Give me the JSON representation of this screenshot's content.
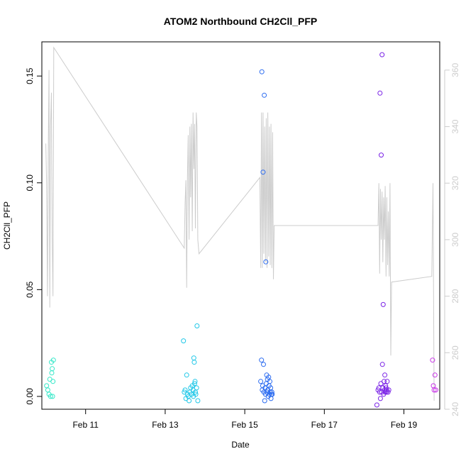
{
  "chart_data": {
    "type": "scatter",
    "title": "ATOM2 Northbound CH2Cll_PFP",
    "xlabel": "Date",
    "ylabel": "CH2Cll_PFP",
    "x_unit": "day of February",
    "xlim": [
      9.9,
      19.9
    ],
    "x_ticks": [
      {
        "value": 11,
        "label": "Feb 11"
      },
      {
        "value": 13,
        "label": "Feb 13"
      },
      {
        "value": 15,
        "label": "Feb 15"
      },
      {
        "value": 17,
        "label": "Feb 17"
      },
      {
        "value": 19,
        "label": "Feb 19"
      }
    ],
    "ylim": [
      -0.006,
      0.166
    ],
    "y_ticks": [
      0.0,
      0.05,
      0.1,
      0.15
    ],
    "y_tick_labels": [
      "0.00",
      "0.05",
      "0.10",
      "0.15"
    ],
    "y2lim": [
      240,
      370
    ],
    "y2_ticks": [
      240,
      260,
      280,
      300,
      320,
      340,
      360
    ],
    "y2_color": "#cccccc",
    "grid": false,
    "legend": "none",
    "marker": "open-circle",
    "points": [
      {
        "x": 10.02,
        "y": 0.005,
        "color": "#33e8c8"
      },
      {
        "x": 10.05,
        "y": 0.003,
        "color": "#33e8c8"
      },
      {
        "x": 10.08,
        "y": 0.001,
        "color": "#33e8c8"
      },
      {
        "x": 10.1,
        "y": 0.008,
        "color": "#33e8c8"
      },
      {
        "x": 10.12,
        "y": 0.0,
        "color": "#33e8c8"
      },
      {
        "x": 10.14,
        "y": 0.016,
        "color": "#33e8c8"
      },
      {
        "x": 10.15,
        "y": 0.011,
        "color": "#33e8c8"
      },
      {
        "x": 10.16,
        "y": 0.013,
        "color": "#33e8c8"
      },
      {
        "x": 10.17,
        "y": 0.0,
        "color": "#33e8c8"
      },
      {
        "x": 10.18,
        "y": 0.007,
        "color": "#33e8c8"
      },
      {
        "x": 10.19,
        "y": 0.017,
        "color": "#33e8c8"
      },
      {
        "x": 13.46,
        "y": 0.026,
        "color": "#22c8e8"
      },
      {
        "x": 13.48,
        "y": 0.002,
        "color": "#22c8e8"
      },
      {
        "x": 13.5,
        "y": 0.003,
        "color": "#22c8e8"
      },
      {
        "x": 13.52,
        "y": -0.001,
        "color": "#22c8e8"
      },
      {
        "x": 13.54,
        "y": 0.01,
        "color": "#22c8e8"
      },
      {
        "x": 13.56,
        "y": 0.001,
        "color": "#22c8e8"
      },
      {
        "x": 13.58,
        "y": 0.0,
        "color": "#22c8e8"
      },
      {
        "x": 13.6,
        "y": -0.002,
        "color": "#22c8e8"
      },
      {
        "x": 13.62,
        "y": 0.002,
        "color": "#22c8e8"
      },
      {
        "x": 13.64,
        "y": 0.004,
        "color": "#22c8e8"
      },
      {
        "x": 13.66,
        "y": 0.001,
        "color": "#22c8e8"
      },
      {
        "x": 13.68,
        "y": 0.005,
        "color": "#22c8e8"
      },
      {
        "x": 13.7,
        "y": 0.003,
        "color": "#22c8e8"
      },
      {
        "x": 13.71,
        "y": 0.0,
        "color": "#22c8e8"
      },
      {
        "x": 13.72,
        "y": 0.018,
        "color": "#22c8e8"
      },
      {
        "x": 13.73,
        "y": 0.016,
        "color": "#22c8e8"
      },
      {
        "x": 13.74,
        "y": 0.006,
        "color": "#22c8e8"
      },
      {
        "x": 13.75,
        "y": 0.007,
        "color": "#22c8e8"
      },
      {
        "x": 13.76,
        "y": 0.002,
        "color": "#22c8e8"
      },
      {
        "x": 13.77,
        "y": 0.001,
        "color": "#22c8e8"
      },
      {
        "x": 13.79,
        "y": 0.004,
        "color": "#22c8e8"
      },
      {
        "x": 13.8,
        "y": 0.033,
        "color": "#22c8e8"
      },
      {
        "x": 13.82,
        "y": -0.002,
        "color": "#22c8e8"
      },
      {
        "x": 15.4,
        "y": 0.007,
        "color": "#2b6bf0"
      },
      {
        "x": 15.42,
        "y": 0.017,
        "color": "#2b6bf0"
      },
      {
        "x": 15.43,
        "y": 0.152,
        "color": "#2b6bf0"
      },
      {
        "x": 15.44,
        "y": 0.003,
        "color": "#2b6bf0"
      },
      {
        "x": 15.45,
        "y": 0.005,
        "color": "#2b6bf0"
      },
      {
        "x": 15.46,
        "y": 0.105,
        "color": "#2b6bf0"
      },
      {
        "x": 15.47,
        "y": 0.015,
        "color": "#2b6bf0"
      },
      {
        "x": 15.48,
        "y": 0.002,
        "color": "#2b6bf0"
      },
      {
        "x": 15.49,
        "y": 0.141,
        "color": "#2b6bf0"
      },
      {
        "x": 15.5,
        "y": -0.002,
        "color": "#2b6bf0"
      },
      {
        "x": 15.51,
        "y": 0.004,
        "color": "#2b6bf0"
      },
      {
        "x": 15.52,
        "y": 0.001,
        "color": "#2b6bf0"
      },
      {
        "x": 15.53,
        "y": 0.063,
        "color": "#2b6bf0"
      },
      {
        "x": 15.54,
        "y": 0.006,
        "color": "#2b6bf0"
      },
      {
        "x": 15.55,
        "y": 0.01,
        "color": "#2b6bf0"
      },
      {
        "x": 15.56,
        "y": 0.002,
        "color": "#2b6bf0"
      },
      {
        "x": 15.57,
        "y": 0.008,
        "color": "#2b6bf0"
      },
      {
        "x": 15.58,
        "y": 0.003,
        "color": "#2b6bf0"
      },
      {
        "x": 15.59,
        "y": 0.0,
        "color": "#2b6bf0"
      },
      {
        "x": 15.6,
        "y": 0.009,
        "color": "#2b6bf0"
      },
      {
        "x": 15.61,
        "y": 0.005,
        "color": "#2b6bf0"
      },
      {
        "x": 15.62,
        "y": 0.001,
        "color": "#2b6bf0"
      },
      {
        "x": 15.63,
        "y": 0.007,
        "color": "#2b6bf0"
      },
      {
        "x": 15.64,
        "y": 0.002,
        "color": "#2b6bf0"
      },
      {
        "x": 15.65,
        "y": 0.004,
        "color": "#2b6bf0"
      },
      {
        "x": 15.66,
        "y": -0.001,
        "color": "#2b6bf0"
      },
      {
        "x": 15.67,
        "y": 0.001,
        "color": "#2b6bf0"
      },
      {
        "x": 15.68,
        "y": 0.002,
        "color": "#2b6bf0"
      },
      {
        "x": 15.69,
        "y": 0.001,
        "color": "#2b6bf0"
      },
      {
        "x": 18.32,
        "y": -0.004,
        "color": "#7a22e6"
      },
      {
        "x": 18.35,
        "y": 0.003,
        "color": "#7a22e6"
      },
      {
        "x": 18.37,
        "y": 0.004,
        "color": "#7a22e6"
      },
      {
        "x": 18.39,
        "y": 0.002,
        "color": "#7a22e6"
      },
      {
        "x": 18.4,
        "y": 0.142,
        "color": "#7a22e6"
      },
      {
        "x": 18.41,
        "y": -0.001,
        "color": "#7a22e6"
      },
      {
        "x": 18.42,
        "y": 0.006,
        "color": "#7a22e6"
      },
      {
        "x": 18.43,
        "y": 0.113,
        "color": "#7a22e6"
      },
      {
        "x": 18.44,
        "y": 0.002,
        "color": "#7a22e6"
      },
      {
        "x": 18.45,
        "y": 0.16,
        "color": "#7a22e6"
      },
      {
        "x": 18.46,
        "y": 0.015,
        "color": "#7a22e6"
      },
      {
        "x": 18.47,
        "y": 0.004,
        "color": "#7a22e6"
      },
      {
        "x": 18.48,
        "y": 0.043,
        "color": "#7a22e6"
      },
      {
        "x": 18.49,
        "y": 0.001,
        "color": "#7a22e6"
      },
      {
        "x": 18.5,
        "y": 0.007,
        "color": "#7a22e6"
      },
      {
        "x": 18.51,
        "y": 0.003,
        "color": "#7a22e6"
      },
      {
        "x": 18.52,
        "y": 0.01,
        "color": "#7a22e6"
      },
      {
        "x": 18.53,
        "y": 0.002,
        "color": "#7a22e6"
      },
      {
        "x": 18.54,
        "y": 0.005,
        "color": "#7a22e6"
      },
      {
        "x": 18.55,
        "y": 0.004,
        "color": "#7a22e6"
      },
      {
        "x": 18.56,
        "y": 0.002,
        "color": "#7a22e6"
      },
      {
        "x": 18.57,
        "y": 0.003,
        "color": "#7a22e6"
      },
      {
        "x": 18.58,
        "y": 0.007,
        "color": "#7a22e6"
      },
      {
        "x": 18.6,
        "y": 0.002,
        "color": "#7a22e6"
      },
      {
        "x": 18.62,
        "y": 0.003,
        "color": "#7a22e6"
      },
      {
        "x": 19.72,
        "y": 0.017,
        "color": "#c733e6"
      },
      {
        "x": 19.74,
        "y": 0.005,
        "color": "#c733e6"
      },
      {
        "x": 19.76,
        "y": 0.003,
        "color": "#c733e6"
      },
      {
        "x": 19.78,
        "y": 0.01,
        "color": "#c733e6"
      },
      {
        "x": 19.8,
        "y": 0.003,
        "color": "#c733e6"
      }
    ],
    "secondary_line": {
      "color": "#cccccc",
      "axis": "right",
      "points": [
        [
          10.0,
          334
        ],
        [
          10.02,
          320
        ],
        [
          10.04,
          280
        ],
        [
          10.06,
          330
        ],
        [
          10.08,
          360
        ],
        [
          10.1,
          276
        ],
        [
          10.12,
          340
        ],
        [
          10.14,
          352
        ],
        [
          10.16,
          300
        ],
        [
          10.18,
          280
        ],
        [
          10.2,
          368
        ],
        [
          13.48,
          297
        ],
        [
          13.5,
          313
        ],
        [
          13.52,
          321
        ],
        [
          13.54,
          283
        ],
        [
          13.56,
          322
        ],
        [
          13.58,
          337
        ],
        [
          13.6,
          300
        ],
        [
          13.62,
          340
        ],
        [
          13.64,
          315
        ],
        [
          13.66,
          341
        ],
        [
          13.68,
          303
        ],
        [
          13.7,
          345
        ],
        [
          13.72,
          325
        ],
        [
          13.74,
          341
        ],
        [
          13.76,
          304
        ],
        [
          13.78,
          345
        ],
        [
          13.8,
          340
        ],
        [
          13.82,
          300
        ],
        [
          13.85,
          295
        ],
        [
          15.38,
          322
        ],
        [
          15.4,
          290
        ],
        [
          15.42,
          345
        ],
        [
          15.44,
          290
        ],
        [
          15.46,
          345
        ],
        [
          15.48,
          295
        ],
        [
          15.5,
          340
        ],
        [
          15.52,
          292
        ],
        [
          15.54,
          343
        ],
        [
          15.56,
          290
        ],
        [
          15.58,
          345
        ],
        [
          15.6,
          294
        ],
        [
          15.62,
          340
        ],
        [
          15.64,
          291
        ],
        [
          15.66,
          341
        ],
        [
          15.68,
          290
        ],
        [
          15.7,
          338
        ],
        [
          15.72,
          286
        ],
        [
          15.74,
          305
        ],
        [
          18.35,
          305
        ],
        [
          18.37,
          320
        ],
        [
          18.39,
          288
        ],
        [
          18.41,
          318
        ],
        [
          18.43,
          300
        ],
        [
          18.45,
          317
        ],
        [
          18.47,
          292
        ],
        [
          18.49,
          315
        ],
        [
          18.51,
          300
        ],
        [
          18.53,
          319
        ],
        [
          18.55,
          287
        ],
        [
          18.57,
          315
        ],
        [
          18.59,
          291
        ],
        [
          18.61,
          310
        ],
        [
          18.63,
          287
        ],
        [
          18.65,
          320
        ],
        [
          18.67,
          259
        ],
        [
          18.69,
          285
        ],
        [
          19.7,
          287
        ],
        [
          19.73,
          320
        ],
        [
          19.76,
          243
        ]
      ]
    }
  }
}
